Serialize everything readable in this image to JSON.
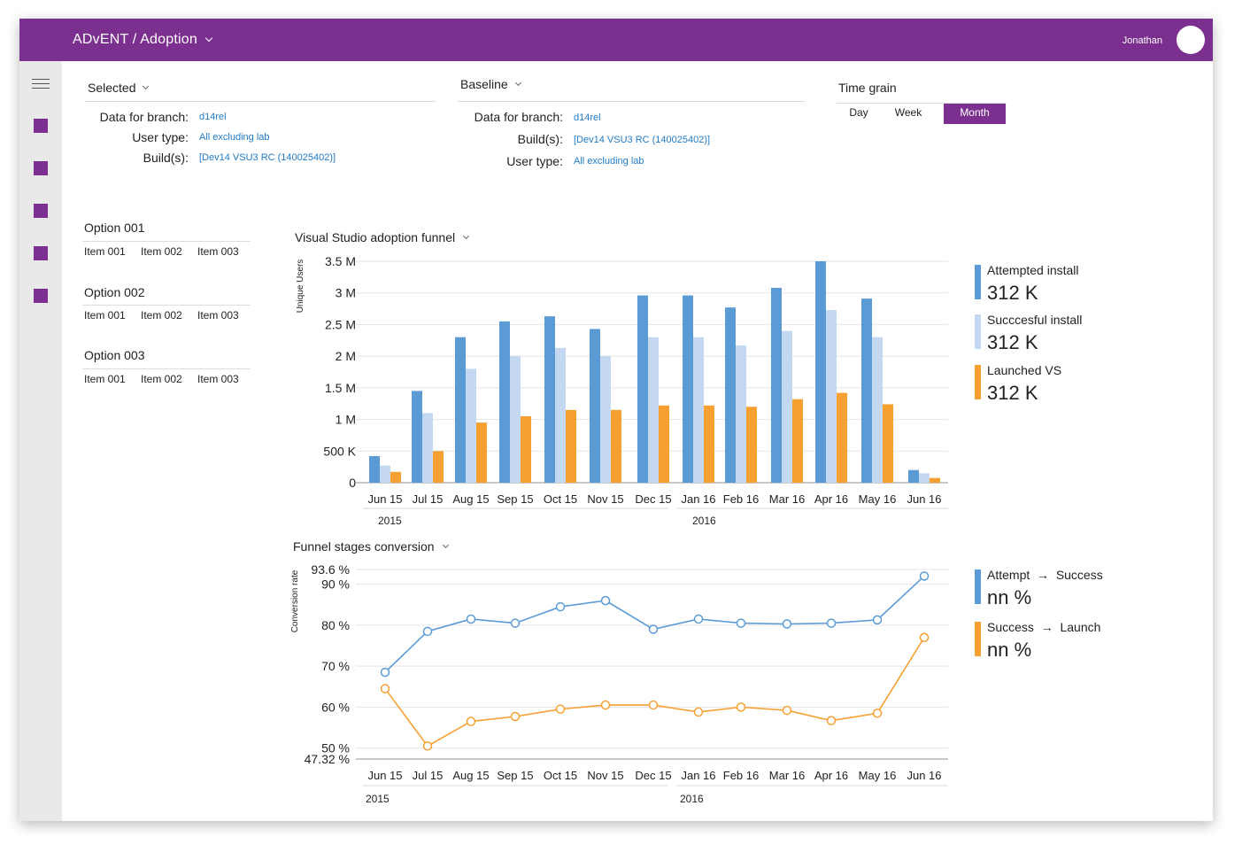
{
  "header": {
    "app_title": "ADvENT / Adoption",
    "user_name": "Jonathan"
  },
  "selected": {
    "title": "Selected",
    "rows": [
      {
        "label": "Data for branch:",
        "value": "d14rel"
      },
      {
        "label": "User type:",
        "value": "All excluding lab"
      },
      {
        "label": "Build(s):",
        "value": "[Dev14 VSU3 RC (140025402)]"
      }
    ]
  },
  "baseline": {
    "title": "Baseline",
    "rows": [
      {
        "label": "Data for branch:",
        "value": "d14rel"
      },
      {
        "label": "Build(s):",
        "value": "[Dev14 VSU3 RC (140025402)]"
      },
      {
        "label": "User type:",
        "value": "All excluding lab"
      }
    ]
  },
  "time_grain": {
    "title": "Time grain",
    "options": [
      "Day",
      "Week",
      "Month"
    ],
    "selected": "Month"
  },
  "options": [
    {
      "title": "Option 001",
      "items": [
        "Item 001",
        "Item 002",
        "Item 003"
      ]
    },
    {
      "title": "Option 002",
      "items": [
        "Item 001",
        "Item 002",
        "Item 003"
      ]
    },
    {
      "title": "Option 003",
      "items": [
        "Item 001",
        "Item 002",
        "Item 003"
      ]
    }
  ],
  "funnel": {
    "title": "Visual Studio adoption funnel",
    "legend": [
      {
        "label": "Attempted install",
        "value": "312 K",
        "color": "#5b9bd5"
      },
      {
        "label": "Succcesful install",
        "value": "312 K",
        "color": "#c5d8f2"
      },
      {
        "label": "Launched VS",
        "value": "312 K",
        "color": "#f5a030"
      }
    ]
  },
  "conversion": {
    "title": "Funnel stages conversion",
    "legend": [
      {
        "from": "Attempt",
        "to": "Success",
        "value": "nn %",
        "color": "#5b9bd5"
      },
      {
        "from": "Success",
        "to": "Launch",
        "value": "nn %",
        "color": "#f5a030"
      }
    ]
  },
  "chart_data": [
    {
      "type": "bar",
      "title": "Visual Studio adoption funnel",
      "ylabel": "Unique Users",
      "categories": [
        "Jun 15",
        "Jul 15",
        "Aug 15",
        "Sep 15",
        "Oct 15",
        "Nov 15",
        "Dec 15",
        "Jan 16",
        "Feb 16",
        "Mar 16",
        "Apr 16",
        "May 16",
        "Jun 16"
      ],
      "x_group_labels": [
        {
          "label": "2015",
          "start": "Jun 15"
        },
        {
          "label": "2016",
          "start": "Jan 16"
        }
      ],
      "yticks": [
        0,
        500000,
        1000000,
        1500000,
        2000000,
        2500000,
        3000000,
        3500000
      ],
      "ytick_labels": [
        "0",
        "500 K",
        "1 M",
        "1.5 M",
        "2 M",
        "2.5 M",
        "3 M",
        "3.5 M"
      ],
      "ylim": [
        0,
        3500000
      ],
      "grid": true,
      "series": [
        {
          "name": "Attempted install",
          "color": "#5b9bd5",
          "values": [
            420000,
            1450000,
            2300000,
            2550000,
            2630000,
            2430000,
            2960000,
            2960000,
            2770000,
            3080000,
            3500000,
            2910000,
            200000
          ]
        },
        {
          "name": "Succcesful install",
          "color": "#c5d8f2",
          "values": [
            270000,
            1100000,
            1800000,
            2000000,
            2130000,
            2000000,
            2300000,
            2300000,
            2170000,
            2400000,
            2730000,
            2300000,
            150000
          ]
        },
        {
          "name": "Launched VS",
          "color": "#f5a030",
          "values": [
            170000,
            500000,
            950000,
            1050000,
            1150000,
            1150000,
            1220000,
            1220000,
            1200000,
            1320000,
            1420000,
            1240000,
            75000
          ]
        }
      ]
    },
    {
      "type": "line",
      "title": "Funnel stages conversion",
      "ylabel": "Conversion rate",
      "categories": [
        "Jun 15",
        "Jul 15",
        "Aug 15",
        "Sep 15",
        "Oct 15",
        "Nov 15",
        "Dec 15",
        "Jan 16",
        "Feb 16",
        "Mar 16",
        "Apr 16",
        "May 16",
        "Jun 16"
      ],
      "x_group_labels": [
        {
          "label": "2015",
          "start": "Jun 15"
        },
        {
          "label": "2016",
          "start": "Jan 16"
        }
      ],
      "yticks": [
        47.32,
        50,
        60,
        70,
        80,
        90,
        93.6
      ],
      "ytick_labels": [
        "47.32 %",
        "50 %",
        "60 %",
        "70 %",
        "80 %",
        "90 %",
        "93.6 %"
      ],
      "ylim": [
        47.32,
        93.6
      ],
      "grid": true,
      "series": [
        {
          "name": "Attempt → Success",
          "color": "#5b9bd5",
          "values": [
            68.5,
            78.5,
            81.5,
            80.5,
            84.5,
            86,
            79,
            81.5,
            80.5,
            80.3,
            80.5,
            81.3,
            92
          ]
        },
        {
          "name": "Success → Launch",
          "color": "#f5a030",
          "values": [
            64.5,
            50.5,
            56.5,
            57.7,
            59.5,
            60.5,
            60.5,
            58.8,
            60,
            59.2,
            56.7,
            58.5,
            77
          ]
        }
      ]
    }
  ]
}
